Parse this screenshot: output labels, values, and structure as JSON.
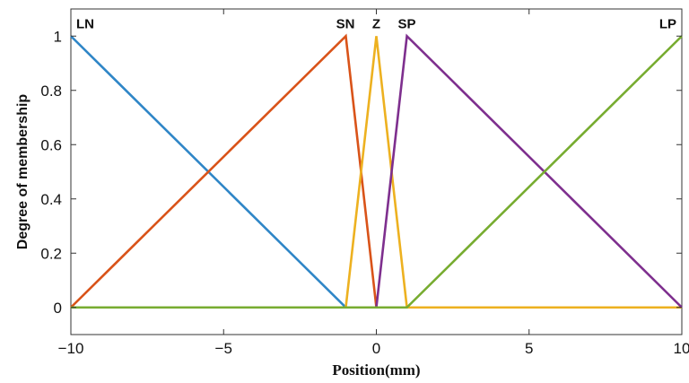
{
  "chart_data": {
    "type": "line",
    "xlabel": "Position(mm)",
    "ylabel": "Degree of membership",
    "xlim": [
      -10,
      10
    ],
    "ylim": [
      -0.1,
      1.1
    ],
    "xticks": [
      -10,
      -5,
      0,
      5,
      10
    ],
    "xtick_labels": [
      "−10",
      "−5",
      "0",
      "5",
      "10"
    ],
    "yticks": [
      0,
      0.2,
      0.4,
      0.6,
      0.8,
      1
    ],
    "ytick_labels": [
      "0",
      "0.2",
      "0.4",
      "0.6",
      "0.8",
      "1"
    ],
    "grid": false,
    "series": [
      {
        "name": "LN",
        "color": "#2f86c7",
        "x": [
          -10,
          -1,
          10
        ],
        "y": [
          1,
          0,
          0
        ]
      },
      {
        "name": "SN",
        "color": "#d95319",
        "x": [
          -10,
          -1,
          0,
          10
        ],
        "y": [
          0,
          1,
          0,
          0
        ]
      },
      {
        "name": "Z",
        "color": "#edb120",
        "x": [
          -10,
          -1,
          0,
          1,
          10
        ],
        "y": [
          0,
          0,
          1,
          0,
          0
        ]
      },
      {
        "name": "SP",
        "color": "#7e2f8e",
        "x": [
          -10,
          0,
          1,
          10
        ],
        "y": [
          0,
          0,
          1,
          0
        ]
      },
      {
        "name": "LP",
        "color": "#77ac30",
        "x": [
          -10,
          1,
          10
        ],
        "y": [
          0,
          0,
          1
        ]
      }
    ]
  }
}
